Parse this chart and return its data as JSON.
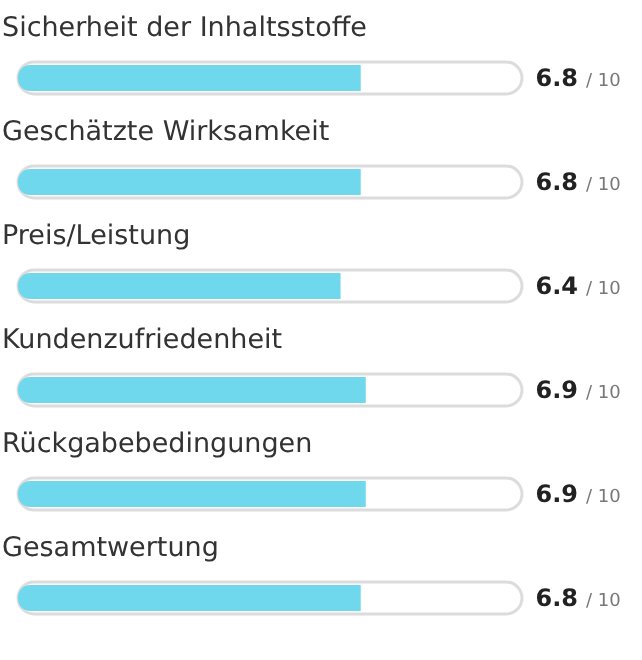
{
  "chart_data": {
    "type": "bar",
    "orientation": "horizontal",
    "categories": [
      "Sicherheit der Inhaltsstoffe",
      "Geschätzte Wirksamkeit",
      "Preis/Leistung",
      "Kundenzufriedenheit",
      "Rückgabebedingungen",
      "Gesamtwertung"
    ],
    "values": [
      6.8,
      6.8,
      6.4,
      6.9,
      6.9,
      6.8
    ],
    "data_labels": true,
    "annotations": [
      "/ 10",
      "/ 10",
      "/ 10",
      "/ 10",
      "/ 10",
      "/ 10"
    ],
    "color": "#70d8ec",
    "xlim": [
      0,
      10
    ]
  }
}
